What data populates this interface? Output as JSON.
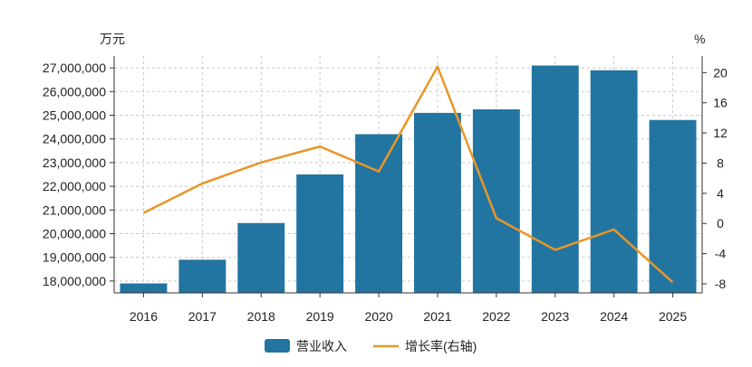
{
  "chart_data": {
    "type": "bar+line",
    "categories": [
      "2016",
      "2017",
      "2018",
      "2019",
      "2020",
      "2021",
      "2022",
      "2023",
      "2024",
      "2025"
    ],
    "series": [
      {
        "name": "营业收入",
        "type": "bar",
        "axis": "left",
        "color": "#2275a1",
        "values": [
          17900000,
          18900000,
          20450000,
          22500000,
          24200000,
          25100000,
          25250000,
          27100000,
          26900000,
          24800000
        ]
      },
      {
        "name": "增长率(右轴)",
        "type": "line",
        "axis": "right",
        "color": "#e89628",
        "values": [
          1.4,
          5.3,
          8.1,
          10.2,
          6.9,
          20.8,
          0.7,
          -3.5,
          -0.8,
          -7.8
        ]
      }
    ],
    "left_axis": {
      "unit": "万元",
      "ylim": [
        17500000,
        27500000
      ],
      "ticks": [
        18000000,
        19000000,
        20000000,
        21000000,
        22000000,
        23000000,
        24000000,
        25000000,
        26000000,
        27000000
      ],
      "tick_labels": [
        "18,000,000",
        "19,000,000",
        "20,000,000",
        "21,000,000",
        "22,000,000",
        "23,000,000",
        "24,000,000",
        "25,000,000",
        "26,000,000",
        "27,000,000"
      ]
    },
    "right_axis": {
      "unit": "%",
      "ylim": [
        -9.2,
        22.2
      ],
      "ticks": [
        -8,
        -4,
        0,
        4,
        8,
        12,
        16,
        20
      ],
      "tick_labels": [
        "-8",
        "-4",
        "0",
        "4",
        "8",
        "12",
        "16",
        "20"
      ]
    },
    "grid": true,
    "legend": "bottom-center"
  }
}
